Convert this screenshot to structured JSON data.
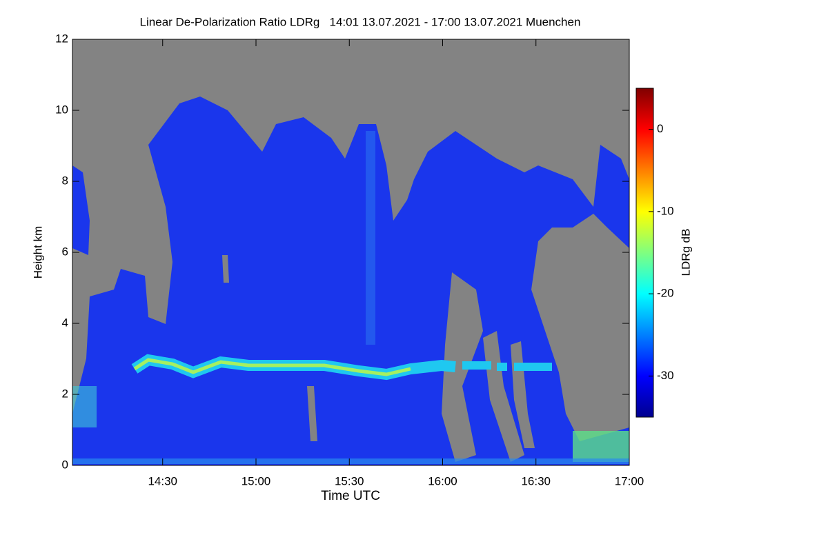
{
  "chart_data": {
    "type": "heatmap",
    "title": "Linear De-Polarization Ratio LDRg   14:01 13.07.2021 - 17:00 13.07.2021 Muenchen",
    "x_label": "Time UTC",
    "y_label": "Height km",
    "xlim": [
      "14:01",
      "17:00"
    ],
    "xticks": [
      "14:30",
      "15:00",
      "15:30",
      "16:00",
      "16:30",
      "17:00"
    ],
    "ylim": [
      0,
      12
    ],
    "yticks": [
      0,
      2,
      4,
      6,
      8,
      10,
      12
    ],
    "colorbar": {
      "label": "LDRg dB",
      "lim": [
        -35,
        5
      ],
      "ticks": [
        0,
        -10,
        -20,
        -30
      ]
    }
  }
}
